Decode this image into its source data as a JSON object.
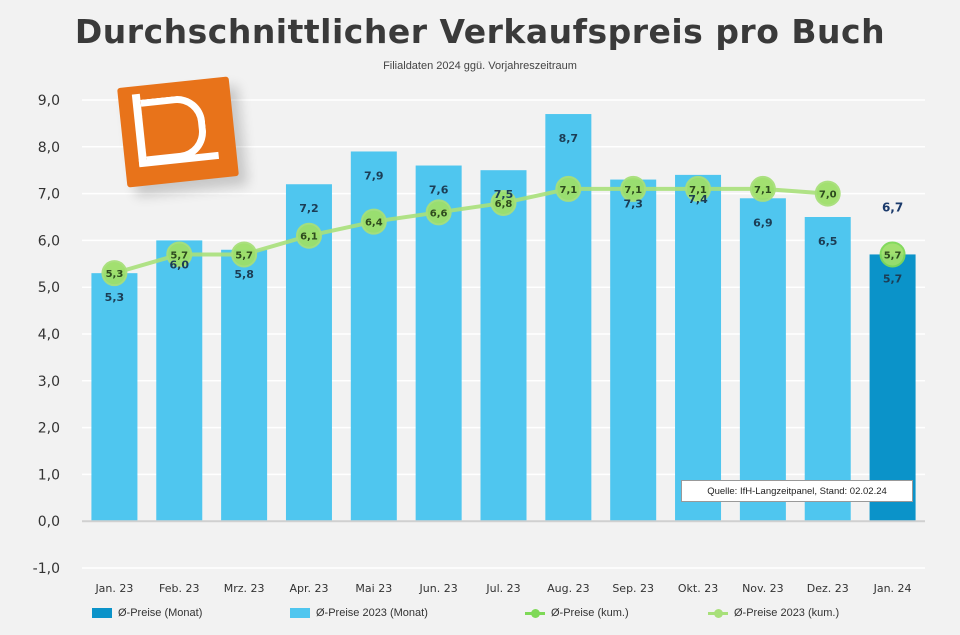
{
  "title": "Durchschnittlicher Verkaufspreis pro Buch",
  "subtitle": "Filialdaten 2024 ggü. Vorjahreszeitraum",
  "source": "Quelle: IfH-Langzeitpanel, Stand: 02.02.24",
  "colors": {
    "bar_current": "#0b93c9",
    "bar_previous": "#4fc6ef",
    "line_current": "#7ed957",
    "line_previous": "#a8e07a",
    "point_fill": "#9ee06a"
  },
  "chart_data": {
    "type": "bar",
    "categories": [
      "Jan. 23",
      "Feb. 23",
      "Mrz. 23",
      "Apr. 23",
      "Mai 23",
      "Jun. 23",
      "Jul. 23",
      "Aug. 23",
      "Sep. 23",
      "Okt. 23",
      "Nov. 23",
      "Dez. 23",
      "Jan. 24"
    ],
    "ylim": [
      -1,
      9
    ],
    "yticks": [
      "-1,0",
      "0,0",
      "1,0",
      "2,0",
      "3,0",
      "4,0",
      "5,0",
      "6,0",
      "7,0",
      "8,0",
      "9,0"
    ],
    "grid": true,
    "legend": "bottom",
    "series": [
      {
        "name": "Ø-Preise (Monat)",
        "kind": "bar",
        "values": [
          null,
          null,
          null,
          null,
          null,
          null,
          null,
          null,
          null,
          null,
          null,
          null,
          5.7
        ],
        "labels": [
          "",
          "",
          "",
          "",
          "",
          "",
          "",
          "",
          "",
          "",
          "",
          "",
          "5,7"
        ]
      },
      {
        "name": "Ø-Preise 2023 (Monat)",
        "kind": "bar",
        "values": [
          5.3,
          6.0,
          5.8,
          7.2,
          7.9,
          7.6,
          7.5,
          8.7,
          7.3,
          7.4,
          6.9,
          6.5,
          null
        ],
        "labels": [
          "5,3",
          "6,0",
          "5,8",
          "7,2",
          "7,9",
          "7,6",
          "7,5",
          "8,7",
          "7,3",
          "7,4",
          "6,9",
          "6,5",
          ""
        ]
      },
      {
        "name": "Ø-Preise (kum.)",
        "kind": "line",
        "values": [
          null,
          null,
          null,
          null,
          null,
          null,
          null,
          null,
          null,
          null,
          null,
          null,
          5.7
        ],
        "labels": [
          "",
          "",
          "",
          "",
          "",
          "",
          "",
          "",
          "",
          "",
          "",
          "",
          "5,7"
        ]
      },
      {
        "name": "Ø-Preise 2023 (kum.)",
        "kind": "line",
        "values": [
          5.3,
          5.7,
          5.7,
          6.1,
          6.4,
          6.6,
          6.8,
          7.1,
          7.1,
          7.1,
          7.1,
          7.0,
          null
        ],
        "labels": [
          "5,3",
          "5,7",
          "5,7",
          "6,1",
          "6,4",
          "6,6",
          "6,8",
          "7,1",
          "7,1",
          "7,1",
          "7,1",
          "7,0",
          ""
        ]
      }
    ],
    "annotations": [
      "6,7"
    ]
  }
}
